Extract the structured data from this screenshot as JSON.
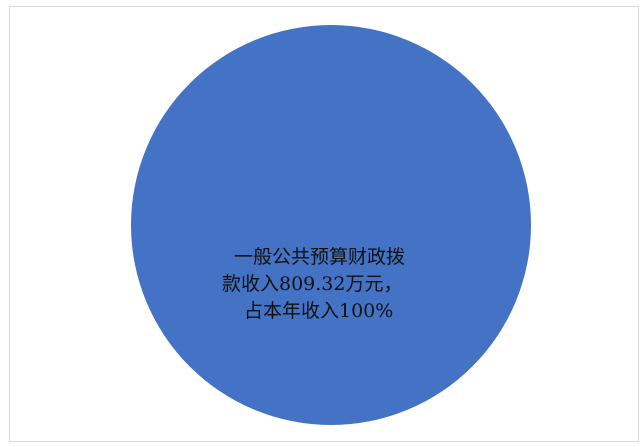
{
  "chart_data": {
    "type": "pie",
    "slices": [
      {
        "name": "一般公共预算财政拨款收入",
        "value": 809.32,
        "percent": 100,
        "color": "#4472c4"
      }
    ],
    "data_labels": [
      {
        "lines": [
          "一般公共预算财政拨",
          "款收入809.32万元，",
          "占本年收入100%"
        ]
      }
    ],
    "title": "",
    "legend": "none"
  }
}
